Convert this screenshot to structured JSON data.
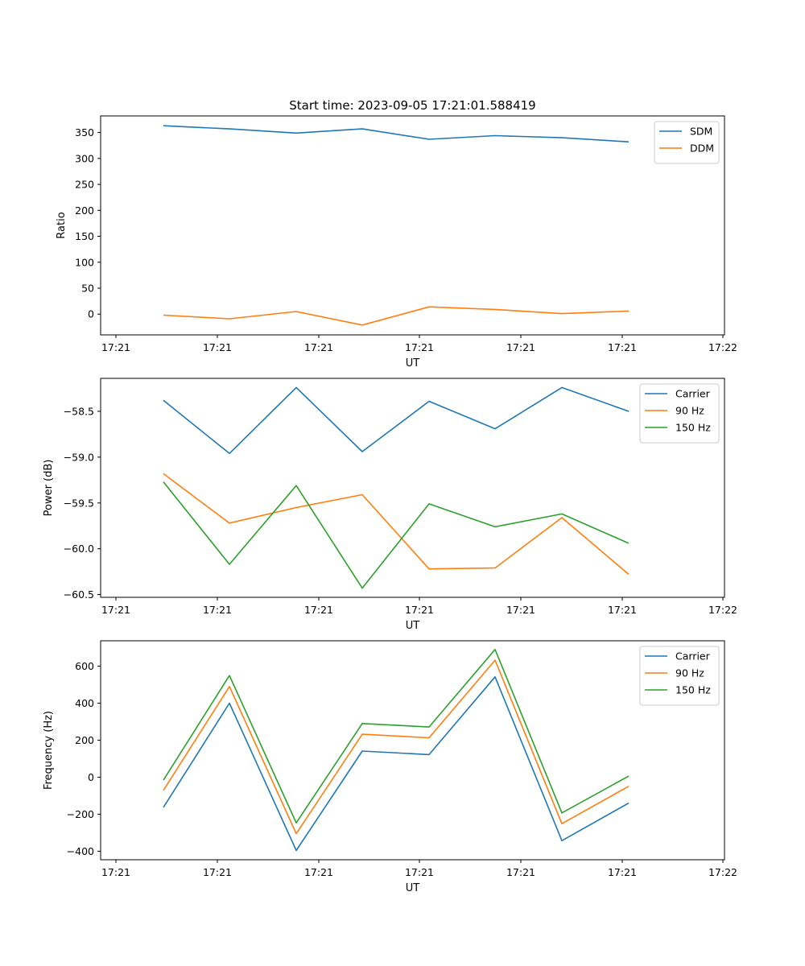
{
  "title": "Start time: 2023-09-05 17:21:01.588419",
  "colors": {
    "blue": "#1f77b4",
    "orange": "#ff7f0e",
    "green": "#2ca02c"
  },
  "chart_data": [
    {
      "type": "line",
      "xlabel": "UT",
      "ylabel": "Ratio",
      "x_tick_labels": [
        "17:21",
        "17:21",
        "17:21",
        "17:21",
        "17:21",
        "17:21",
        "17:22"
      ],
      "y_ticks": [
        0,
        50,
        100,
        150,
        200,
        250,
        300,
        350
      ],
      "y_tick_labels": [
        "0",
        "50",
        "100",
        "150",
        "200",
        "250",
        "300",
        "350"
      ],
      "ylim": [
        -40,
        382
      ],
      "legend": "top-right",
      "series": [
        {
          "name": "SDM",
          "color": "#1f77b4",
          "values": [
            363,
            357,
            349,
            357,
            337,
            344,
            340,
            332
          ]
        },
        {
          "name": "DDM",
          "color": "#ff7f0e",
          "values": [
            -2,
            -9,
            5,
            -21,
            14,
            9,
            1,
            6
          ]
        }
      ]
    },
    {
      "type": "line",
      "xlabel": "UT",
      "ylabel": "Power (dB)",
      "x_tick_labels": [
        "17:21",
        "17:21",
        "17:21",
        "17:21",
        "17:21",
        "17:21",
        "17:22"
      ],
      "y_ticks": [
        -58.5,
        -59.0,
        -59.5,
        -60.0,
        -60.5
      ],
      "y_tick_labels": [
        "−58.5",
        "−59.0",
        "−59.5",
        "−60.0",
        "−60.5"
      ],
      "ylim": [
        -60.53,
        -58.14
      ],
      "legend": "top-right",
      "series": [
        {
          "name": "Carrier",
          "color": "#1f77b4",
          "values": [
            -58.38,
            -58.96,
            -58.24,
            -58.94,
            -58.39,
            -58.69,
            -58.24,
            -58.5
          ]
        },
        {
          "name": "90 Hz",
          "color": "#ff7f0e",
          "values": [
            -59.18,
            -59.72,
            -59.55,
            -59.41,
            -60.22,
            -60.21,
            -59.66,
            -60.28
          ]
        },
        {
          "name": "150 Hz",
          "color": "#2ca02c",
          "values": [
            -59.27,
            -60.17,
            -59.31,
            -60.43,
            -59.51,
            -59.76,
            -59.62,
            -59.94
          ]
        }
      ]
    },
    {
      "type": "line",
      "xlabel": "UT",
      "ylabel": "Frequency (Hz)",
      "x_tick_labels": [
        "17:21",
        "17:21",
        "17:21",
        "17:21",
        "17:21",
        "17:21",
        "17:22"
      ],
      "y_ticks": [
        600,
        400,
        200,
        0,
        -200,
        -400
      ],
      "y_tick_labels": [
        "600",
        "400",
        "200",
        "0",
        "−200",
        "−400"
      ],
      "ylim": [
        -446,
        737
      ],
      "legend": "top-right",
      "series": [
        {
          "name": "Carrier",
          "color": "#1f77b4",
          "values": [
            -163,
            400,
            -396,
            141,
            122,
            542,
            -343,
            -140
          ]
        },
        {
          "name": "90 Hz",
          "color": "#ff7f0e",
          "values": [
            -71,
            490,
            -305,
            232,
            213,
            632,
            -251,
            -49
          ]
        },
        {
          "name": "150 Hz",
          "color": "#2ca02c",
          "values": [
            -16,
            549,
            -247,
            290,
            271,
            690,
            -193,
            6
          ]
        }
      ]
    }
  ]
}
